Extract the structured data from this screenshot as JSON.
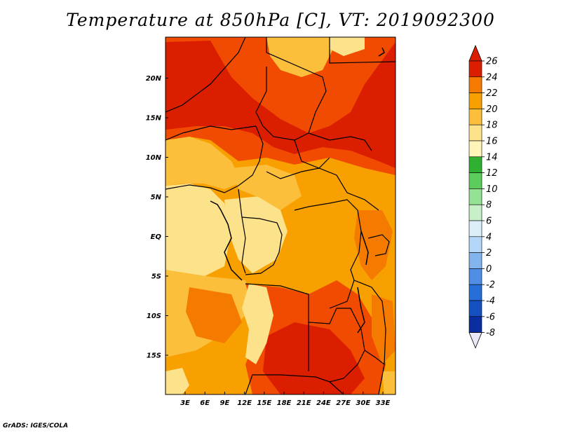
{
  "title": "Temperature at 850hPa [C], VT: 2019092300",
  "credit": "GrADS: IGES/COLA",
  "lat_labels": [
    {
      "label": "20N",
      "value": 20
    },
    {
      "label": "15N",
      "value": 15
    },
    {
      "label": "10N",
      "value": 10
    },
    {
      "label": "5N",
      "value": 5
    },
    {
      "label": "EQ",
      "value": 0
    },
    {
      "label": "5S",
      "value": -5
    },
    {
      "label": "10S",
      "value": -10
    },
    {
      "label": "15S",
      "value": -15
    }
  ],
  "lon_labels": [
    {
      "label": "3E",
      "value": 3
    },
    {
      "label": "6E",
      "value": 6
    },
    {
      "label": "9E",
      "value": 9
    },
    {
      "label": "12E",
      "value": 12
    },
    {
      "label": "15E",
      "value": 15
    },
    {
      "label": "18E",
      "value": 18
    },
    {
      "label": "21E",
      "value": 21
    },
    {
      "label": "24E",
      "value": 24
    },
    {
      "label": "27E",
      "value": 27
    },
    {
      "label": "30E",
      "value": 30
    },
    {
      "label": "33E",
      "value": 33
    }
  ],
  "colorbar": {
    "levels": [
      "26",
      "24",
      "22",
      "20",
      "18",
      "16",
      "14",
      "12",
      "10",
      "8",
      "6",
      "4",
      "2",
      "0",
      "-2",
      "-4",
      "-6",
      "-8"
    ],
    "colors": [
      "#dc1e00",
      "#f04b00",
      "#f57a00",
      "#f8a000",
      "#fcbf3c",
      "#fde28c",
      "#fff5b9",
      "#30b030",
      "#5ccc5c",
      "#94e294",
      "#c8f0c8",
      "#dceefa",
      "#b4d6f8",
      "#82b4ee",
      "#508ee6",
      "#286ed8",
      "#1450c0",
      "#0a2ea0"
    ],
    "top_color": "#dc1e00",
    "bottom_color": "#e8e8f8",
    "bottom_end_color": "#0a1e6e"
  }
}
